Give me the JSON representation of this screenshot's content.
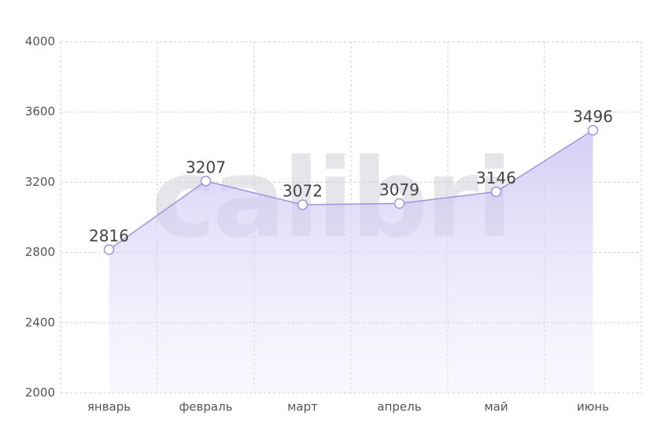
{
  "chart_data": {
    "type": "area",
    "watermark": "calibri",
    "categories": [
      "январь",
      "февраль",
      "март",
      "апрель",
      "май",
      "июнь"
    ],
    "values": [
      2816,
      3207,
      3072,
      3079,
      3146,
      3496
    ],
    "color": "#a392e4",
    "ylim": [
      2000,
      4000
    ],
    "yticks": [
      2000,
      2400,
      2800,
      3200,
      3600,
      4000
    ],
    "grid": true
  }
}
